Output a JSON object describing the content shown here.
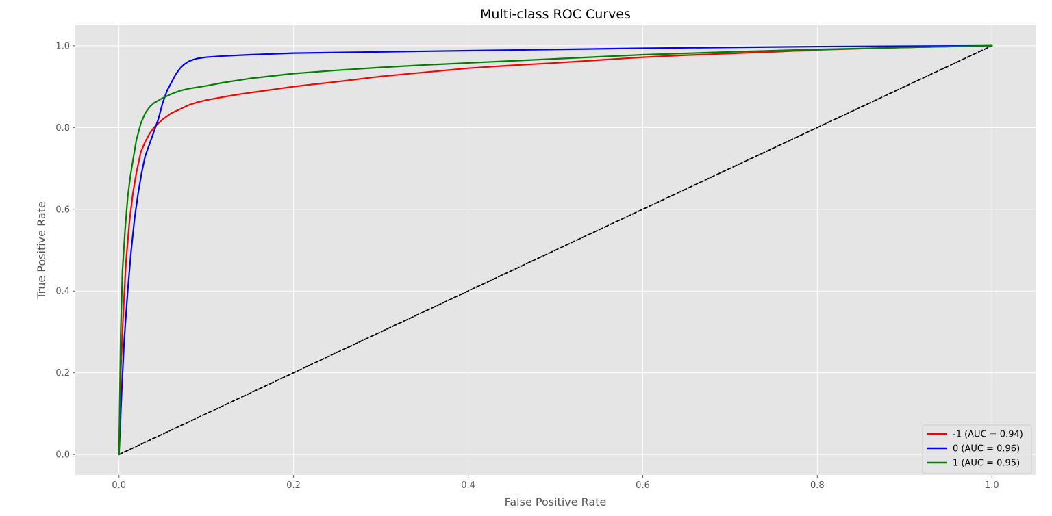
{
  "chart_data": {
    "type": "line",
    "title": "Multi-class ROC Curves",
    "xlabel": "False Positive Rate",
    "ylabel": "True Positive Rate",
    "xlim": [
      -0.05,
      1.05
    ],
    "ylim": [
      -0.05,
      1.05
    ],
    "xticks": [
      0.0,
      0.2,
      0.4,
      0.6,
      0.8,
      1.0
    ],
    "yticks": [
      0.0,
      0.2,
      0.4,
      0.6,
      0.8,
      1.0
    ],
    "xtick_labels": [
      "0.0",
      "0.2",
      "0.4",
      "0.6",
      "0.8",
      "1.0"
    ],
    "ytick_labels": [
      "0.0",
      "0.2",
      "0.4",
      "0.6",
      "0.8",
      "1.0"
    ],
    "grid": true,
    "legend_position": "bottom-right",
    "series": [
      {
        "name": "-1 (AUC = 0.94)",
        "color": "#ff0000",
        "x": [
          0,
          0.002,
          0.005,
          0.008,
          0.012,
          0.016,
          0.02,
          0.025,
          0.03,
          0.035,
          0.04,
          0.05,
          0.06,
          0.07,
          0.08,
          0.09,
          0.1,
          0.12,
          0.14,
          0.16,
          0.18,
          0.2,
          0.22,
          0.25,
          0.3,
          0.35,
          0.4,
          0.45,
          0.5,
          0.55,
          0.6,
          0.65,
          0.7,
          0.75,
          0.8,
          0.85,
          0.9,
          0.95,
          1.0
        ],
        "y": [
          0,
          0.2,
          0.35,
          0.47,
          0.57,
          0.64,
          0.69,
          0.74,
          0.765,
          0.785,
          0.8,
          0.82,
          0.835,
          0.845,
          0.855,
          0.862,
          0.867,
          0.875,
          0.882,
          0.888,
          0.894,
          0.9,
          0.905,
          0.912,
          0.925,
          0.935,
          0.945,
          0.952,
          0.958,
          0.965,
          0.972,
          0.977,
          0.981,
          0.985,
          0.99,
          0.993,
          0.996,
          0.998,
          1.0
        ]
      },
      {
        "name": "0 (AUC = 0.96)",
        "color": "#0000ff",
        "x": [
          0,
          0.003,
          0.006,
          0.01,
          0.014,
          0.018,
          0.022,
          0.026,
          0.03,
          0.035,
          0.04,
          0.045,
          0.05,
          0.055,
          0.06,
          0.065,
          0.07,
          0.075,
          0.08,
          0.085,
          0.09,
          0.1,
          0.12,
          0.15,
          0.2,
          0.3,
          0.4,
          0.5,
          0.6,
          0.7,
          0.8,
          0.9,
          1.0
        ],
        "y": [
          0,
          0.15,
          0.28,
          0.4,
          0.5,
          0.58,
          0.64,
          0.69,
          0.73,
          0.76,
          0.79,
          0.82,
          0.86,
          0.89,
          0.91,
          0.93,
          0.945,
          0.955,
          0.962,
          0.966,
          0.969,
          0.972,
          0.975,
          0.978,
          0.982,
          0.985,
          0.988,
          0.991,
          0.994,
          0.996,
          0.998,
          0.999,
          1.0
        ]
      },
      {
        "name": "1 (AUC = 0.95)",
        "color": "#008000",
        "x": [
          0,
          0.002,
          0.004,
          0.007,
          0.01,
          0.013,
          0.016,
          0.02,
          0.025,
          0.03,
          0.035,
          0.04,
          0.05,
          0.06,
          0.07,
          0.08,
          0.1,
          0.12,
          0.15,
          0.2,
          0.25,
          0.3,
          0.35,
          0.4,
          0.5,
          0.6,
          0.7,
          0.8,
          0.9,
          1.0
        ],
        "y": [
          0,
          0.3,
          0.45,
          0.55,
          0.63,
          0.68,
          0.72,
          0.77,
          0.81,
          0.835,
          0.85,
          0.86,
          0.872,
          0.882,
          0.89,
          0.895,
          0.902,
          0.91,
          0.92,
          0.932,
          0.94,
          0.947,
          0.953,
          0.958,
          0.968,
          0.978,
          0.985,
          0.991,
          0.996,
          1.0
        ]
      },
      {
        "name": "",
        "color": "#000000",
        "dashed": true,
        "x": [
          0,
          1
        ],
        "y": [
          0,
          1
        ]
      }
    ]
  }
}
